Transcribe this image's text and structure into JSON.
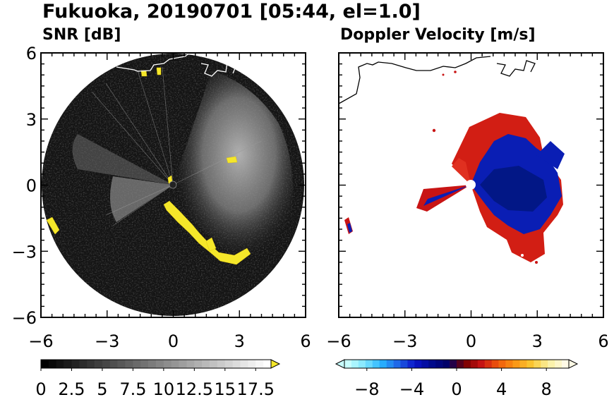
{
  "title": "Fukuoka, 20190701 [05:44, el=1.0]",
  "chart_data": [
    {
      "type": "heatmap",
      "title": "SNR [dB]",
      "xlim": [
        -6,
        6
      ],
      "ylim": [
        -6,
        6
      ],
      "x_ticks": [
        "−6",
        "−3",
        "0",
        "3",
        "6"
      ],
      "y_ticks": [
        "6",
        "3",
        "0",
        "−3",
        "−6"
      ],
      "colorbar": {
        "min": 0,
        "max": 18.75,
        "step": 0.625,
        "extend": "max",
        "tick_labels": [
          "0",
          "2.5",
          "5",
          "7.5",
          "10",
          "12.5",
          "15",
          "17.5"
        ],
        "tick_values": [
          0,
          2.5,
          5,
          7.5,
          10,
          12.5,
          15,
          17.5
        ],
        "colors": [
          "#000000",
          "#ffffff"
        ],
        "extend_color": "#f5e72a"
      },
      "notable_regions": [
        {
          "label": "high-snr echo",
          "color": "#f5e72a",
          "points": [
            [
              -0.2,
              -1.0
            ],
            [
              1.0,
              -2.0
            ],
            [
              1.8,
              -3.0
            ],
            [
              3.0,
              -3.4
            ],
            [
              3.6,
              -3.0
            ],
            [
              2.8,
              1.2
            ],
            [
              -5.6,
              -1.8
            ],
            [
              -1.2,
              5.0
            ]
          ]
        }
      ]
    },
    {
      "type": "heatmap",
      "title": "Doppler Velocity [m/s]",
      "xlim": [
        -6,
        6
      ],
      "ylim": [
        -6,
        6
      ],
      "x_ticks": [
        "−6",
        "−3",
        "0",
        "3",
        "6"
      ],
      "y_ticks": [],
      "colorbar": {
        "min": -10,
        "max": 10,
        "extend": "both",
        "tick_labels": [
          "−8",
          "−4",
          "0",
          "4",
          "8"
        ],
        "tick_values": [
          -8,
          -4,
          0,
          4,
          8
        ],
        "colors": [
          "#c8ffff",
          "#7fe6ff",
          "#28b4ff",
          "#1e64e6",
          "#0a14c8",
          "#000a8c",
          "#000064",
          "#780000",
          "#c81414",
          "#f05a0a",
          "#fa9614",
          "#fac832",
          "#faf0a0",
          "#fffae6"
        ],
        "extend_low_color": "#c8ffff",
        "extend_high_color": "#fffae6"
      },
      "notable_regions": [
        {
          "label": "receding (blue)",
          "color": "#0a1eb4",
          "points": [
            [
              0.5,
              0.5
            ],
            [
              1.5,
              1.5
            ],
            [
              2.5,
              0.5
            ],
            [
              3.0,
              -1.0
            ],
            [
              2.0,
              -2.0
            ],
            [
              1.0,
              -1.0
            ]
          ]
        },
        {
          "label": "approaching (red)",
          "color": "#d21e14",
          "points": [
            [
              -1.5,
              0.8
            ],
            [
              -2.2,
              -0.6
            ],
            [
              2.5,
              2.8
            ],
            [
              3.0,
              -3.0
            ],
            [
              -5.5,
              -1.7
            ]
          ]
        }
      ]
    }
  ]
}
